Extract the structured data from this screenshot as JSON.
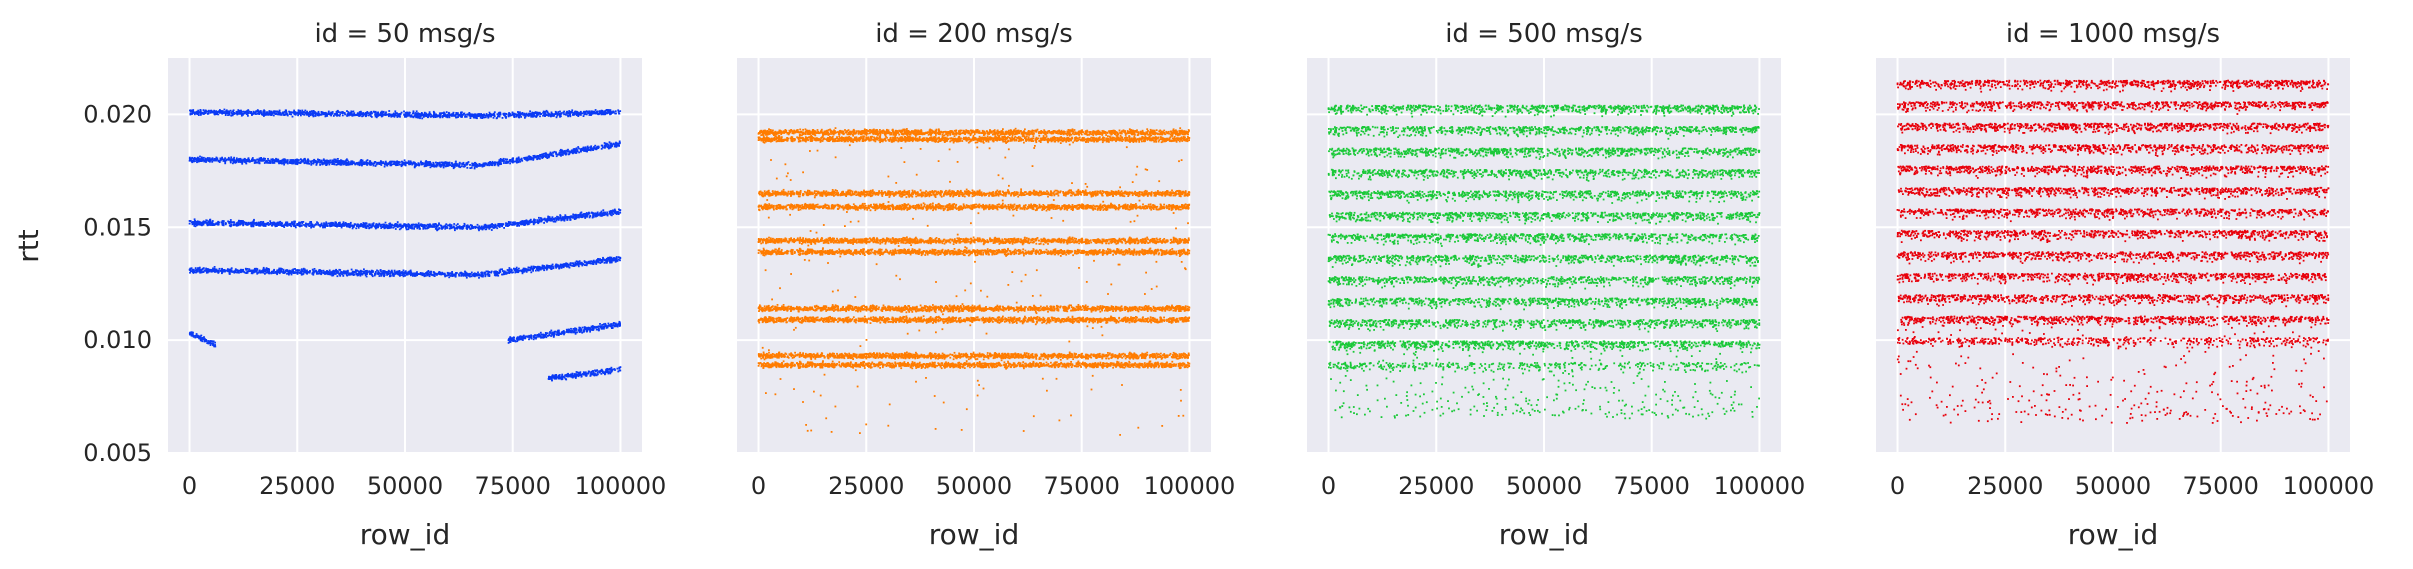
{
  "figure": {
    "background_color": "#eaeaf2",
    "grid_color": "#ffffff",
    "grid": true,
    "sharey": true
  },
  "chart_data": [
    {
      "type": "scatter",
      "title": "id = 50 msg/s",
      "xlabel": "row_id",
      "ylabel": "rtt",
      "xlim": [
        -5000,
        105000
      ],
      "ylim": [
        0.005,
        0.0225
      ],
      "x_ticks": [
        0,
        25000,
        50000,
        75000,
        100000
      ],
      "x_tick_labels": [
        "0",
        "25000",
        "50000",
        "75000",
        "100000"
      ],
      "y_ticks": [
        0.005,
        0.01,
        0.015,
        0.02
      ],
      "y_tick_labels": [
        "0.005",
        "0.010",
        "0.015",
        "0.020"
      ],
      "color": "#0b3bf5",
      "bands": [
        {
          "x": [
            0,
            68000,
            100000
          ],
          "y": [
            0.0201,
            0.01995,
            0.0201
          ]
        },
        {
          "x": [
            0,
            68000,
            100000
          ],
          "y": [
            0.018,
            0.01775,
            0.0187
          ]
        },
        {
          "x": [
            0,
            68000,
            100000
          ],
          "y": [
            0.0152,
            0.015,
            0.0157
          ]
        },
        {
          "x": [
            0,
            68000,
            100000
          ],
          "y": [
            0.0131,
            0.0129,
            0.0136
          ]
        },
        {
          "x": [
            0,
            6000
          ],
          "y": [
            0.0103,
            0.0098
          ]
        },
        {
          "x": [
            74000,
            100000
          ],
          "y": [
            0.01,
            0.0107
          ]
        },
        {
          "x": [
            83000,
            100000
          ],
          "y": [
            0.0083,
            0.0087
          ]
        }
      ]
    },
    {
      "type": "scatter",
      "title": "id = 200 msg/s",
      "xlabel": "row_id",
      "ylabel": "",
      "xlim": [
        -5000,
        105000
      ],
      "ylim": [
        0.005,
        0.0225
      ],
      "x_ticks": [
        0,
        25000,
        50000,
        75000,
        100000
      ],
      "x_tick_labels": [
        "0",
        "25000",
        "50000",
        "75000",
        "100000"
      ],
      "color": "#ff7c00",
      "bands": [
        {
          "x": [
            0,
            100000
          ],
          "y": [
            0.0192,
            0.0192
          ]
        },
        {
          "x": [
            0,
            100000
          ],
          "y": [
            0.0189,
            0.0189
          ]
        },
        {
          "x": [
            0,
            100000
          ],
          "y": [
            0.0165,
            0.0165
          ]
        },
        {
          "x": [
            0,
            100000
          ],
          "y": [
            0.0159,
            0.0159
          ]
        },
        {
          "x": [
            0,
            100000
          ],
          "y": [
            0.0144,
            0.0144
          ]
        },
        {
          "x": [
            0,
            100000
          ],
          "y": [
            0.0139,
            0.0139
          ]
        },
        {
          "x": [
            0,
            100000
          ],
          "y": [
            0.0114,
            0.0114
          ]
        },
        {
          "x": [
            0,
            100000
          ],
          "y": [
            0.0109,
            0.0109
          ]
        },
        {
          "x": [
            0,
            100000
          ],
          "y": [
            0.0093,
            0.0093
          ]
        },
        {
          "x": [
            0,
            100000
          ],
          "y": [
            0.0089,
            0.0089
          ]
        }
      ],
      "range": [
        0.0058,
        0.0194
      ]
    },
    {
      "type": "scatter",
      "title": "id = 500 msg/s",
      "xlabel": "row_id",
      "ylabel": "",
      "xlim": [
        -5000,
        105000
      ],
      "ylim": [
        0.005,
        0.0225
      ],
      "x_ticks": [
        0,
        25000,
        50000,
        75000,
        100000
      ],
      "x_tick_labels": [
        "0",
        "25000",
        "50000",
        "75000",
        "100000"
      ],
      "color": "#1ac938",
      "range": [
        0.0065,
        0.0204
      ],
      "dense_range": [
        0.0095,
        0.0204
      ]
    },
    {
      "type": "scatter",
      "title": "id = 1000 msg/s",
      "xlabel": "row_id",
      "ylabel": "",
      "xlim": [
        -5000,
        105000
      ],
      "ylim": [
        0.005,
        0.0225
      ],
      "x_ticks": [
        0,
        25000,
        50000,
        75000,
        100000
      ],
      "x_tick_labels": [
        "0",
        "25000",
        "50000",
        "75000",
        "100000"
      ],
      "color": "#e8000b",
      "range": [
        0.0063,
        0.0215
      ],
      "dense_range": [
        0.0105,
        0.0215
      ]
    }
  ]
}
